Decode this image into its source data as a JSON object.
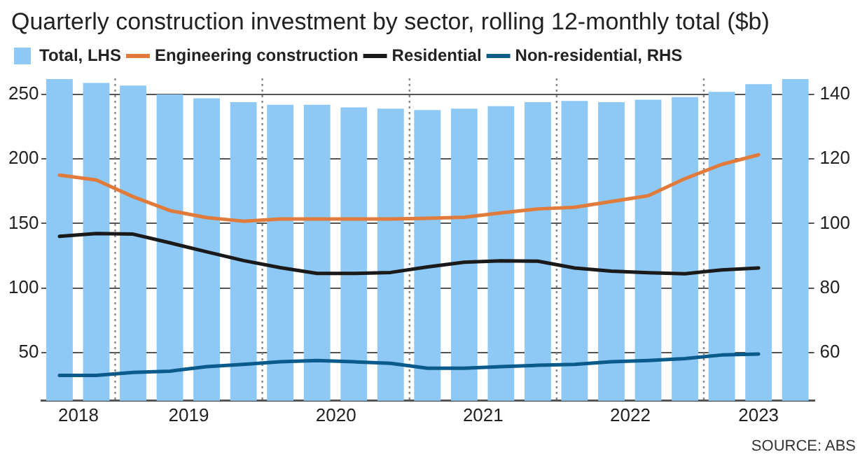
{
  "chart_data": {
    "type": "bar",
    "title": "Quarterly construction investment by sector, rolling 12-monthly total ($b)",
    "x": [
      "2018-08-15",
      "2018-11-15",
      "2019-02-15",
      "2019-05-15",
      "2019-08-15",
      "2019-11-15",
      "2020-02-15",
      "2020-05-15",
      "2020-08-15",
      "2020-11-15",
      "2021-02-15",
      "2021-05-15",
      "2021-08-15",
      "2021-11-15",
      "2022-02-15",
      "2022-05-15",
      "2022-08-15",
      "2022-11-15",
      "2023-02-15",
      "2023-05-15",
      "2023-08-15"
    ],
    "xlim": [
      "2018-07-01",
      "2023-10-01"
    ],
    "xticks": [
      {
        "value": "2018-10-01",
        "label": "2018"
      },
      {
        "value": "2019-07-01",
        "label": "2019"
      },
      {
        "value": "2020-07-01",
        "label": "2020"
      },
      {
        "value": "2021-07-01",
        "label": "2021"
      },
      {
        "value": "2022-07-01",
        "label": "2022"
      },
      {
        "value": "2023-05-15",
        "label": "2023"
      }
    ],
    "ylim": [
      12.5,
      262.5
    ],
    "yticks": [
      50,
      100,
      150,
      200,
      250
    ],
    "y2lim": [
      45,
      145
    ],
    "y2ticks": [
      60,
      80,
      100,
      120,
      140
    ],
    "series": [
      {
        "name": "Total, LHS",
        "color": "#8ec8f5",
        "values": [
          262,
          259,
          257,
          250,
          247,
          244,
          242,
          242,
          240,
          239,
          238,
          239,
          241,
          244,
          245,
          244,
          246,
          248,
          252,
          258,
          262
        ]
      },
      {
        "name": "Engineering construction",
        "type": "line",
        "axis": "y2",
        "color": "#e07b3c",
        "values": [
          115,
          113.5,
          108.3,
          104,
          101.8,
          100.7,
          101.4,
          101.4,
          101.4,
          101.4,
          101.6,
          101.9,
          103.3,
          104.5,
          105,
          106.8,
          108.6,
          113.9,
          118.3,
          121.3,
          null
        ]
      },
      {
        "name": "Residential",
        "type": "line",
        "axis": "y2",
        "color": "#1a1a1a",
        "values": [
          96,
          96.9,
          96.7,
          94,
          91.2,
          88.5,
          86.3,
          84.5,
          84.5,
          84.8,
          86.5,
          88,
          88.4,
          88.3,
          86.2,
          85.2,
          84.7,
          84.4,
          85.6,
          86.2,
          null
        ]
      },
      {
        "name": "Non-residential, RHS",
        "type": "line",
        "axis": "y2",
        "color": "#0a5a8c",
        "values": [
          52.9,
          52.9,
          53.8,
          54.2,
          55.6,
          56.3,
          57.1,
          57.5,
          57.1,
          56.6,
          55.1,
          55.1,
          55.6,
          56,
          56.3,
          57.1,
          57.5,
          58.1,
          59.2,
          59.5,
          null
        ]
      }
    ],
    "ref_lines": [
      {
        "axis": "x",
        "value": "2019-01-01",
        "color": "#888888",
        "line_style": "dotted"
      },
      {
        "axis": "x",
        "value": "2020-01-01",
        "color": "#888888",
        "line_style": "dotted"
      },
      {
        "axis": "x",
        "value": "2021-01-01",
        "color": "#888888",
        "line_style": "dotted"
      },
      {
        "axis": "x",
        "value": "2022-01-01",
        "color": "#888888",
        "line_style": "dotted"
      },
      {
        "axis": "x",
        "value": "2023-01-01",
        "color": "#888888",
        "line_style": "dotted"
      }
    ],
    "grid": "y",
    "legend": "top left",
    "marker": "none",
    "line_style": "solid",
    "annotations": [
      "SOURCE: ABS"
    ]
  }
}
